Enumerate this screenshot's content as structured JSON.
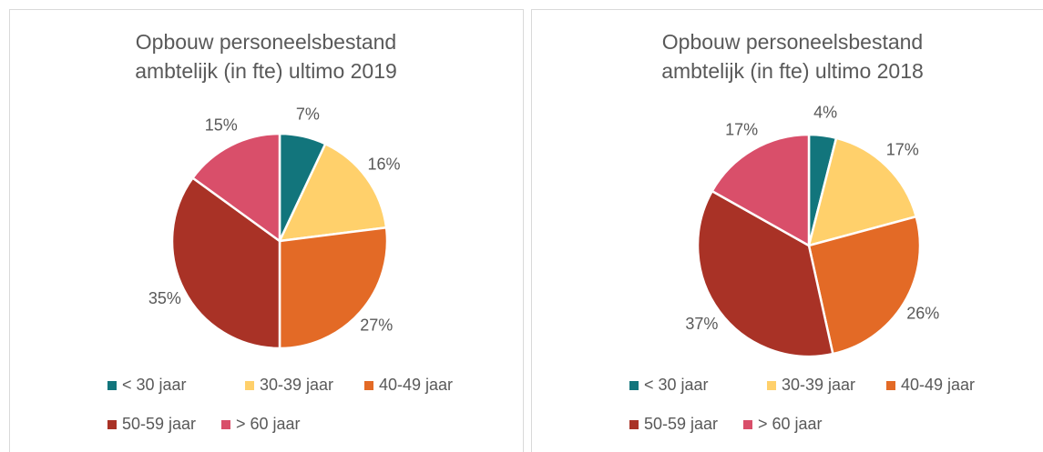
{
  "chart_data": [
    {
      "type": "pie",
      "title": [
        "Opbouw personeelsbestand",
        "ambtelijk (in fte) ultimo 2019"
      ],
      "categories": [
        "< 30 jaar",
        "30-39 jaar",
        "40-49 jaar",
        "50-59 jaar",
        "> 60 jaar"
      ],
      "values": [
        7,
        16,
        27,
        35,
        15
      ],
      "value_labels": [
        "7%",
        "16%",
        "27%",
        "35%",
        "15%"
      ],
      "colors": [
        "#12757c",
        "#ffd06b",
        "#e36a26",
        "#a93226",
        "#d94f6a"
      ]
    },
    {
      "type": "pie",
      "title": [
        "Opbouw personeelsbestand",
        "ambtelijk (in fte) ultimo 2018"
      ],
      "categories": [
        "< 30 jaar",
        "30-39 jaar",
        "40-49 jaar",
        "50-59 jaar",
        "> 60 jaar"
      ],
      "values": [
        4,
        17,
        26,
        37,
        17
      ],
      "value_labels": [
        "4%",
        "17%",
        "26%",
        "37%",
        "17%"
      ],
      "colors": [
        "#12757c",
        "#ffd06b",
        "#e36a26",
        "#a93226",
        "#d94f6a"
      ]
    }
  ]
}
